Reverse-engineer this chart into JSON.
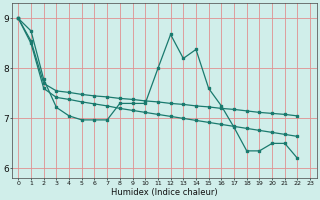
{
  "xlabel": "Humidex (Indice chaleur)",
  "xlim": [
    -0.5,
    23.5
  ],
  "ylim": [
    5.8,
    9.3
  ],
  "bg_color": "#d0eeea",
  "grid_color": "#e09090",
  "line_color": "#1a7a6e",
  "series_main": [
    9.0,
    8.75,
    7.78,
    7.22,
    7.05,
    6.97,
    6.97,
    6.97,
    7.3,
    7.3,
    7.3,
    8.0,
    8.68,
    8.2,
    8.38,
    7.6,
    7.25,
    6.82,
    6.35,
    6.35,
    6.5,
    6.5,
    6.2
  ],
  "series_line2": [
    9.0,
    8.55,
    7.7,
    7.55,
    7.52,
    7.48,
    7.45,
    7.43,
    7.4,
    7.38,
    7.35,
    7.33,
    7.3,
    7.28,
    7.25,
    7.23,
    7.2,
    7.18,
    7.15,
    7.12,
    7.1,
    7.08,
    7.05
  ],
  "series_line3": [
    9.0,
    8.5,
    7.6,
    7.42,
    7.38,
    7.33,
    7.29,
    7.25,
    7.2,
    7.16,
    7.12,
    7.08,
    7.04,
    7.0,
    6.96,
    6.92,
    6.88,
    6.84,
    6.8,
    6.76,
    6.72,
    6.68,
    6.64
  ],
  "xtick_labels": [
    "0",
    "1",
    "2",
    "3",
    "4",
    "5",
    "6",
    "7",
    "8",
    "9",
    "10",
    "11",
    "12",
    "13",
    "14",
    "15",
    "16",
    "17",
    "18",
    "19",
    "20",
    "21",
    "22",
    "23"
  ],
  "ytick_values": [
    6,
    7,
    8,
    9
  ],
  "ytick_labels": [
    "6",
    "7",
    "8",
    "9"
  ]
}
